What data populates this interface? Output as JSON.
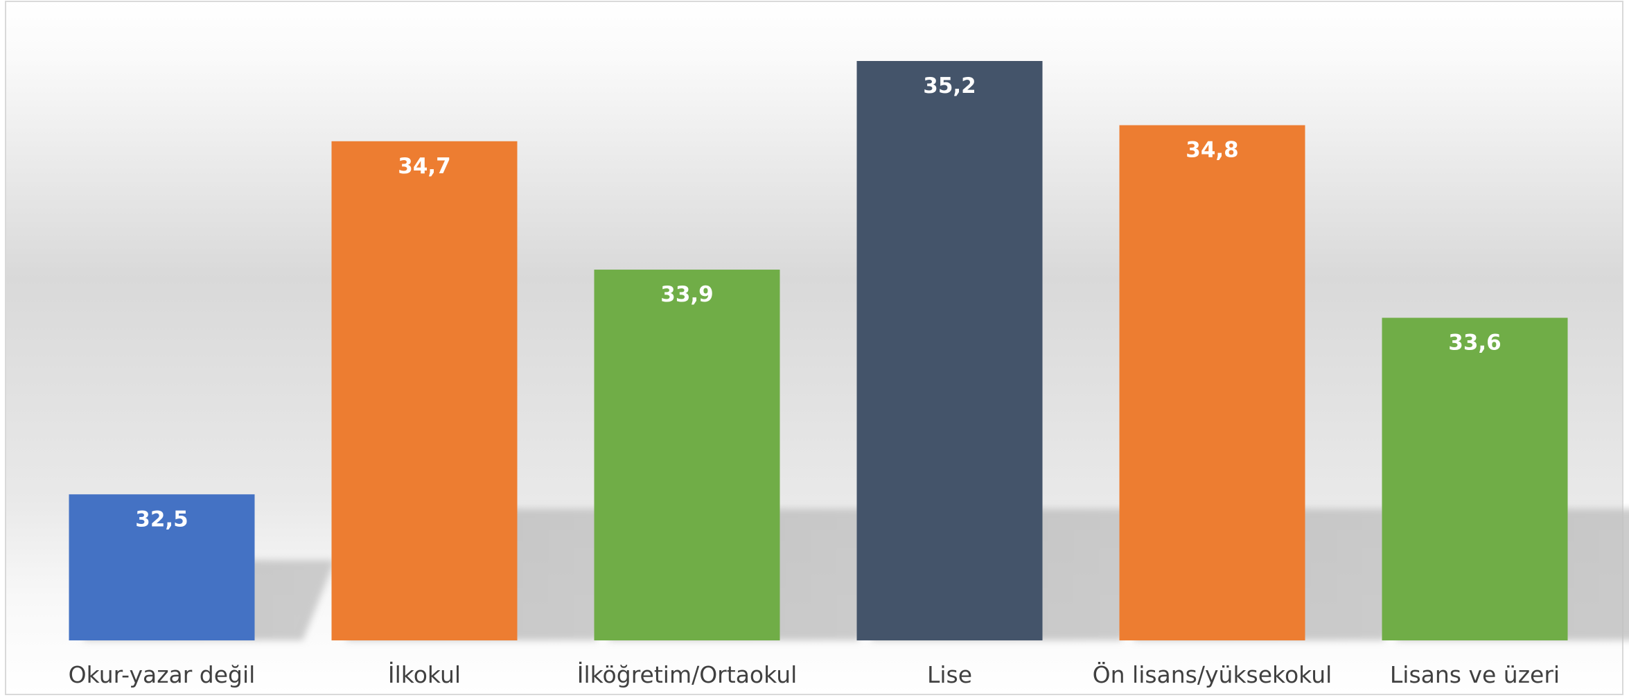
{
  "chart_data": {
    "type": "bar",
    "categories": [
      "Okur-yazar değil",
      "İlkokul",
      "İlköğretim/Ortaokul",
      "Lise",
      "Ön lisans/yüksekokul",
      "Lisans ve üzeri"
    ],
    "values": [
      32.5,
      34.7,
      33.9,
      35.2,
      34.8,
      33.6
    ],
    "data_labels": [
      "32,5",
      "34,7",
      "33,9",
      "35,2",
      "34,8",
      "33,6"
    ],
    "colors": [
      "#4472C4",
      "#ED7D31",
      "#70AD47",
      "#44546A",
      "#ED7D31",
      "#70AD47"
    ],
    "title": "",
    "xlabel": "",
    "ylabel": "",
    "ylim": [
      31.59,
      35.2
    ],
    "grid": false,
    "legend": "none"
  }
}
